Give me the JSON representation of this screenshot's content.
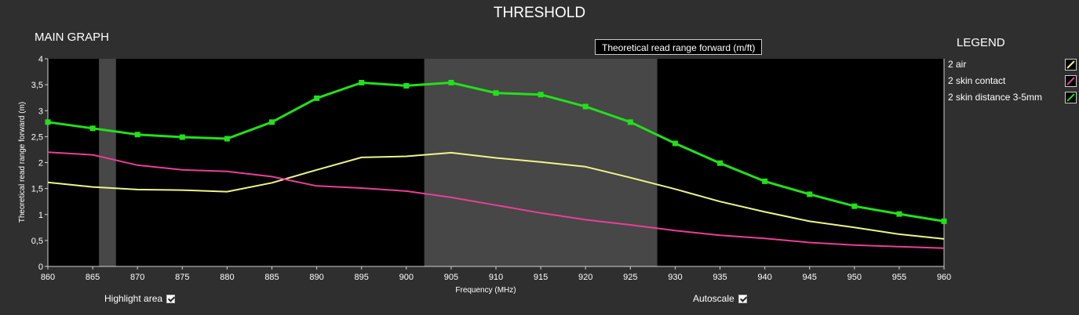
{
  "title": "THRESHOLD",
  "main_graph_label": "MAIN GRAPH",
  "legend_title": "LEGEND",
  "tooltip": "Theoretical read range forward (m/ft)",
  "legend": [
    {
      "label": "2 air",
      "color": "#eef58a"
    },
    {
      "label": "2 skin contact",
      "color": "#e83f9a"
    },
    {
      "label": "2 skin distance 3-5mm",
      "color": "#22e01a"
    }
  ],
  "controls": {
    "highlight_label": "Highlight area",
    "highlight_checked": true,
    "autoscale_label": "Autoscale",
    "autoscale_checked": true
  },
  "chart_data": {
    "type": "line",
    "xlabel": "Frequency (MHz)",
    "ylabel": "Theoretical read range forward (m)",
    "xlim": [
      860,
      960
    ],
    "ylim": [
      0,
      4
    ],
    "xticks": [
      "860",
      "865",
      "870",
      "875",
      "880",
      "885",
      "890",
      "895",
      "900",
      "905",
      "910",
      "915",
      "920",
      "925",
      "930",
      "935",
      "940",
      "945",
      "950",
      "955",
      "960"
    ],
    "yticks": [
      "0",
      "0,5",
      "1",
      "1,5",
      "2",
      "2,5",
      "3",
      "3,5",
      "4"
    ],
    "highlight_bands": [
      [
        865.7,
        867.6
      ],
      [
        902,
        928
      ]
    ],
    "x": [
      860,
      865,
      870,
      875,
      880,
      885,
      890,
      895,
      900,
      905,
      910,
      915,
      920,
      925,
      930,
      935,
      940,
      945,
      950,
      955,
      960
    ],
    "series": [
      {
        "name": "2 air",
        "color": "#eef58a",
        "markers": false,
        "values": [
          1.62,
          1.53,
          1.48,
          1.47,
          1.44,
          1.61,
          1.86,
          2.1,
          2.12,
          2.19,
          2.09,
          2.01,
          1.92,
          1.71,
          1.49,
          1.25,
          1.05,
          0.87,
          0.75,
          0.62,
          0.53
        ]
      },
      {
        "name": "2 skin contact",
        "color": "#e83f9a",
        "markers": false,
        "values": [
          2.2,
          2.15,
          1.95,
          1.86,
          1.83,
          1.73,
          1.55,
          1.51,
          1.45,
          1.33,
          1.18,
          1.03,
          0.9,
          0.8,
          0.69,
          0.6,
          0.54,
          0.46,
          0.41,
          0.38,
          0.35
        ]
      },
      {
        "name": "2 skin distance 3-5mm",
        "color": "#22e01a",
        "markers": true,
        "values": [
          2.78,
          2.66,
          2.54,
          2.49,
          2.46,
          2.78,
          3.24,
          3.54,
          3.48,
          3.54,
          3.34,
          3.31,
          3.08,
          2.78,
          2.37,
          1.99,
          1.64,
          1.39,
          1.16,
          1.01,
          0.87
        ]
      }
    ]
  }
}
